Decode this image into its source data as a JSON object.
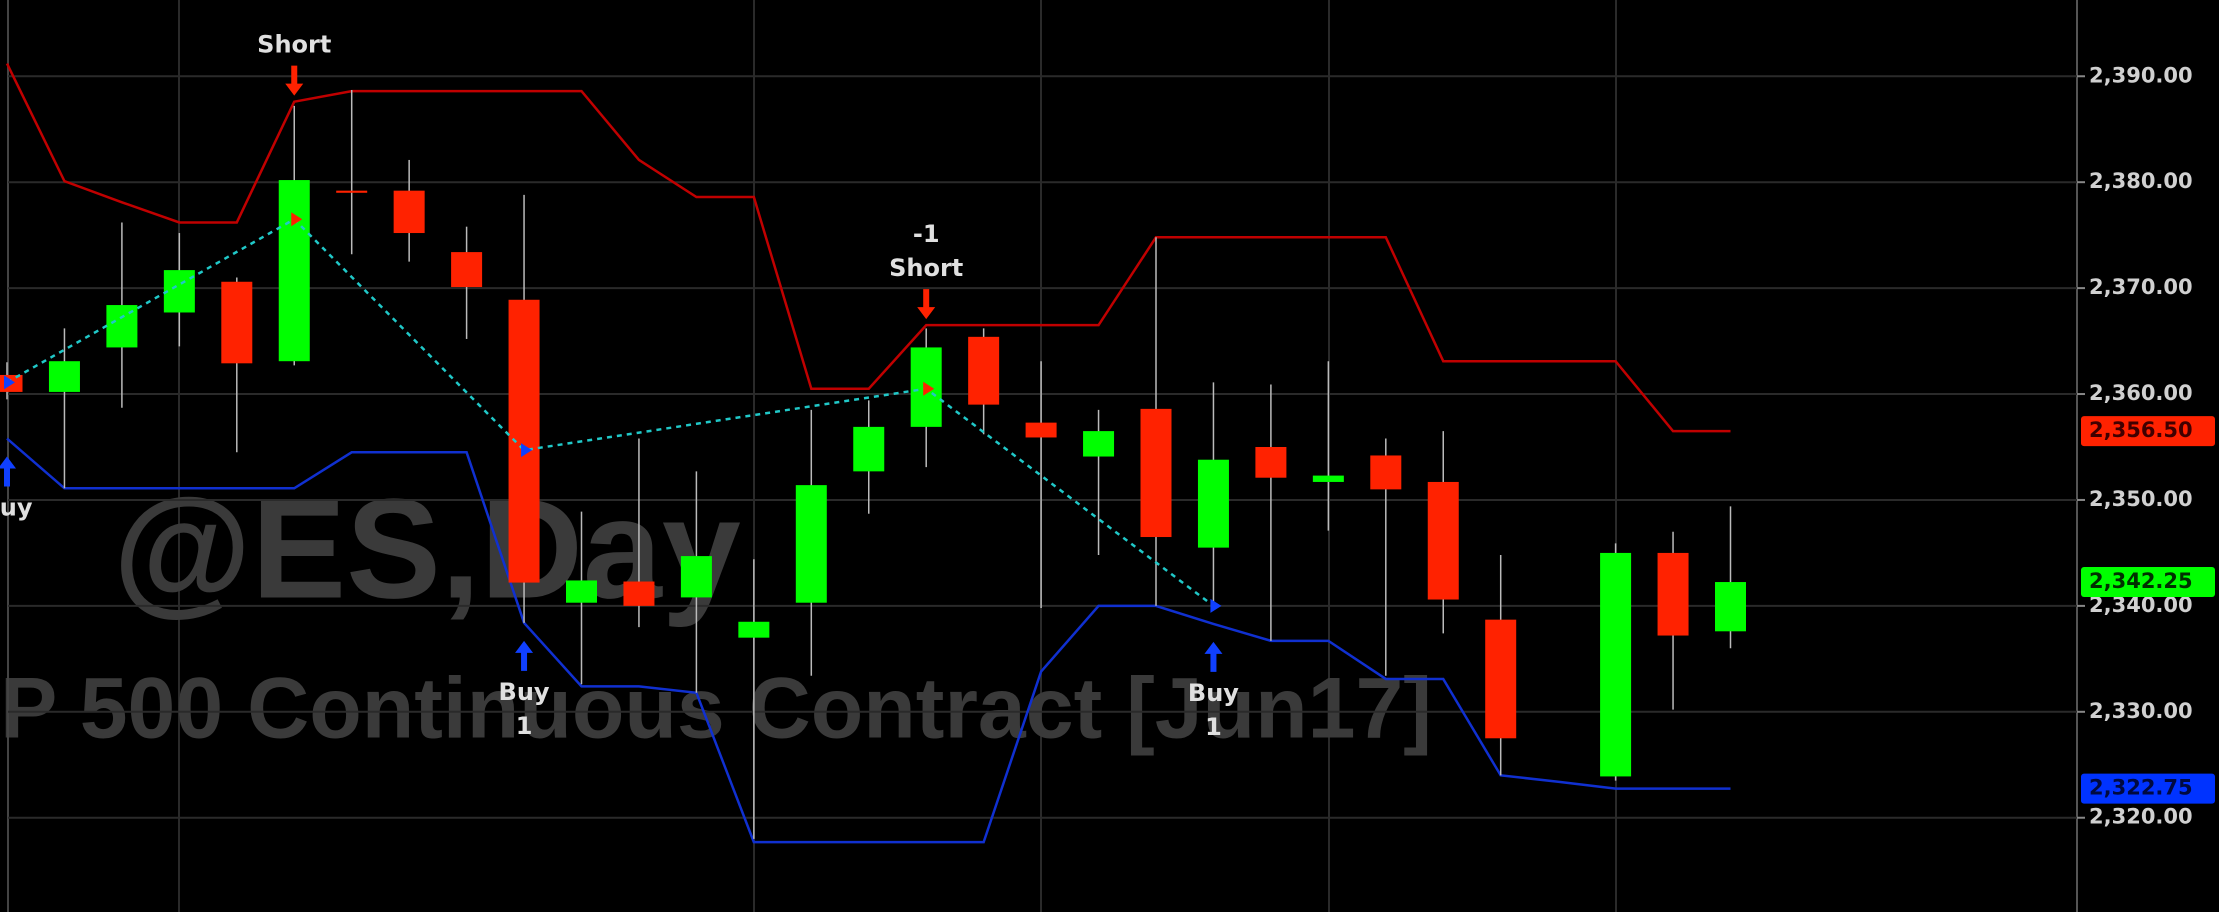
{
  "chart_data": {
    "type": "candlestick",
    "watermark_title": "@ES,Day",
    "watermark_subtitle": "P 500 Continuous Contract [Jun17]",
    "up_color": "#00ff00",
    "down_color": "#ff2200",
    "open": [
      2361.8,
      2360.2,
      2364.4,
      2367.7,
      2370.6,
      2363.1,
      2379.2,
      2379.2,
      2373.4,
      2368.9,
      2340.3,
      2342.3,
      2340.8,
      2337.0,
      2340.3,
      2352.7,
      2356.9,
      2365.4,
      2357.3,
      2354.1,
      2358.6,
      2345.5,
      2355.0,
      2351.7,
      2354.2,
      2351.7,
      2338.7,
      null,
      2323.9,
      2345.0,
      2337.6
    ],
    "high": [
      2363.0,
      2366.2,
      2376.2,
      2375.2,
      2371.0,
      2387.2,
      2388.7,
      2382.1,
      2375.8,
      2378.8,
      2348.9,
      2355.8,
      2352.7,
      2344.4,
      2358.5,
      2359.4,
      2366.2,
      2366.2,
      2363.1,
      2358.5,
      2374.8,
      2361.1,
      2360.9,
      2363.1,
      2355.8,
      2356.5,
      2344.8,
      null,
      2345.9,
      2347.0,
      2349.4
    ],
    "low": [
      2359.5,
      2351.1,
      2358.7,
      2364.5,
      2354.5,
      2362.7,
      2373.2,
      2372.5,
      2365.2,
      2338.4,
      2332.6,
      2338.0,
      2331.8,
      2318.0,
      2333.4,
      2348.7,
      2353.1,
      2356.2,
      2339.8,
      2344.8,
      2340.0,
      2340.0,
      2336.7,
      2347.1,
      2333.4,
      2337.4,
      2324.0,
      null,
      2323.5,
      2330.2,
      2336.0
    ],
    "close": [
      2360.2,
      2363.1,
      2368.4,
      2371.7,
      2362.9,
      2380.2,
      2379.0,
      2375.2,
      2370.1,
      2342.2,
      2342.4,
      2340.0,
      2344.7,
      2338.5,
      2351.4,
      2356.9,
      2364.4,
      2359.0,
      2355.9,
      2356.5,
      2346.5,
      2353.8,
      2352.1,
      2352.3,
      2351.0,
      2340.6,
      2327.5,
      null,
      2345.0,
      2337.2,
      2342.25
    ],
    "channel": {
      "upper": {
        "color": "#c00000",
        "values": [
          2391.2,
          2380.1,
          2378.1,
          2376.2,
          2376.2,
          2387.6,
          2388.6,
          2388.6,
          2388.6,
          2388.6,
          2388.6,
          2382.1,
          2378.6,
          2378.6,
          2360.5,
          2360.5,
          2366.5,
          2366.5,
          2366.5,
          2366.5,
          2374.8,
          2374.8,
          2374.8,
          2374.8,
          2374.8,
          2363.1,
          2363.1,
          2363.1,
          2363.1,
          2356.5,
          2356.5
        ]
      },
      "lower": {
        "color": "#1030d0",
        "values": [
          2355.8,
          2351.1,
          2351.1,
          2351.1,
          2351.1,
          2351.1,
          2354.5,
          2354.5,
          2354.5,
          2338.4,
          2332.4,
          2332.4,
          2331.8,
          2317.7,
          2317.7,
          2317.7,
          2317.7,
          2317.7,
          2333.8,
          2340.0,
          2340.0,
          2338.3,
          2336.7,
          2336.7,
          2333.1,
          2333.1,
          2324.0,
          2323.4,
          2322.75,
          2322.75,
          2322.75
        ]
      }
    },
    "trades": {
      "color": "#20c8c8",
      "points": [
        {
          "bar": 0,
          "price": 2361.1,
          "side": "buy",
          "label": [
            "Buy"
          ]
        },
        {
          "bar": 5,
          "price": 2376.5,
          "side": "sell",
          "label": [
            "Short"
          ]
        },
        {
          "bar": 9,
          "price": 2354.7,
          "side": "buy",
          "label": [
            "Buy",
            "1"
          ]
        },
        {
          "bar": 16,
          "price": 2360.5,
          "side": "sell",
          "label": [
            "-1",
            "Short"
          ]
        },
        {
          "bar": 21,
          "price": 2340.0,
          "side": "buy",
          "label": [
            "Buy",
            "1"
          ]
        }
      ]
    },
    "ylim": [
      2311.1,
      2397.2
    ],
    "yticks": [
      {
        "value": 2320,
        "label": "2,320.00"
      },
      {
        "value": 2330,
        "label": "2,330.00"
      },
      {
        "value": 2340,
        "label": "2,340.00"
      },
      {
        "value": 2350,
        "label": "2,350.00"
      },
      {
        "value": 2360,
        "label": "2,360.00"
      },
      {
        "value": 2370,
        "label": "2,370.00"
      },
      {
        "value": 2380,
        "label": "2,380.00"
      },
      {
        "value": 2390,
        "label": "2,390.00"
      }
    ],
    "grid": true,
    "price_markers": [
      {
        "value": 2356.5,
        "label": "2,356.50",
        "color": "#ff2200",
        "text_color": "#400000"
      },
      {
        "value": 2342.25,
        "label": "2,342.25",
        "color": "#00ff00",
        "text_color": "#003000"
      },
      {
        "value": 2322.75,
        "label": "2,322.75",
        "color": "#0033ff",
        "text_color": "#000a40"
      }
    ]
  }
}
